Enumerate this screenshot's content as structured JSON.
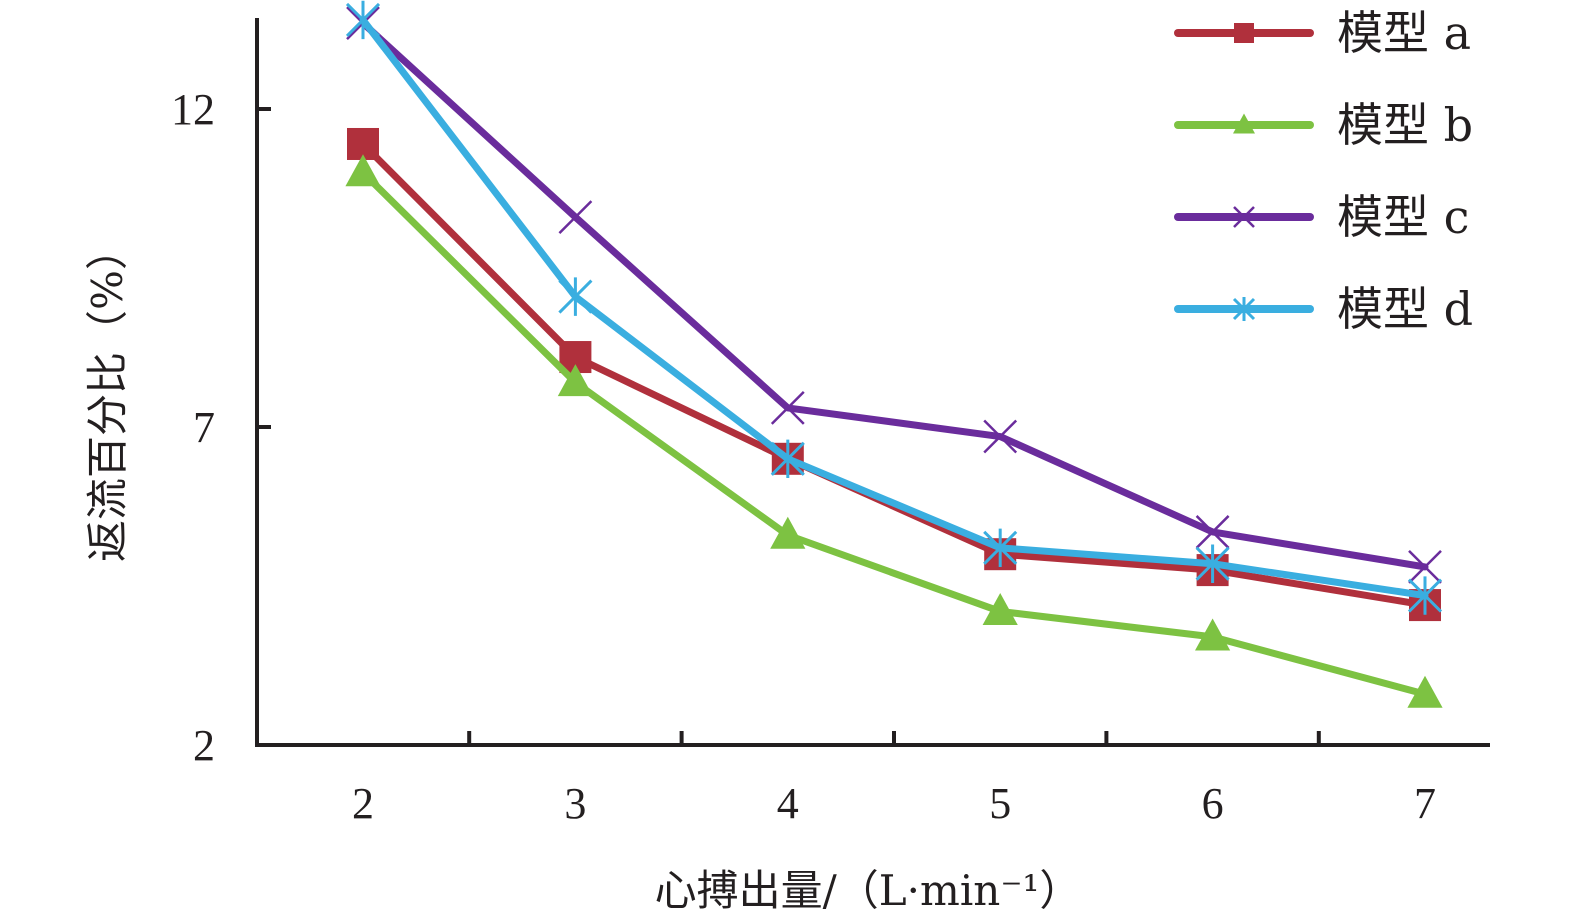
{
  "chart_data": {
    "type": "line",
    "xlabel": "心搏出量/（L·min⁻¹）",
    "ylabel": "返流百分比（%）",
    "x": [
      2,
      3,
      4,
      5,
      6,
      7
    ],
    "x_tick_labels": [
      "2",
      "3",
      "4",
      "5",
      "6",
      "7"
    ],
    "y_ticks": [
      2,
      7,
      12
    ],
    "y_tick_labels": [
      "2",
      "7",
      "12"
    ],
    "ylim": [
      2,
      13.5
    ],
    "xlim": [
      1.5,
      7.3
    ],
    "grid": false,
    "legend_position": "top-right",
    "series": [
      {
        "name": "模型 a",
        "color": "#b0303c",
        "marker": "square",
        "values": [
          11.45,
          8.1,
          6.5,
          5.0,
          4.75,
          4.2
        ]
      },
      {
        "name": "模型 b",
        "color": "#7dc242",
        "marker": "triangle",
        "values": [
          11.0,
          7.7,
          5.3,
          4.1,
          3.7,
          2.8
        ]
      },
      {
        "name": "模型 c",
        "color": "#6a2c9c",
        "marker": "x",
        "values": [
          13.35,
          10.3,
          7.3,
          6.85,
          5.35,
          4.8
        ]
      },
      {
        "name": "模型 d",
        "color": "#3aaee0",
        "marker": "star",
        "values": [
          13.4,
          9.05,
          6.5,
          5.1,
          4.85,
          4.35
        ]
      }
    ]
  }
}
